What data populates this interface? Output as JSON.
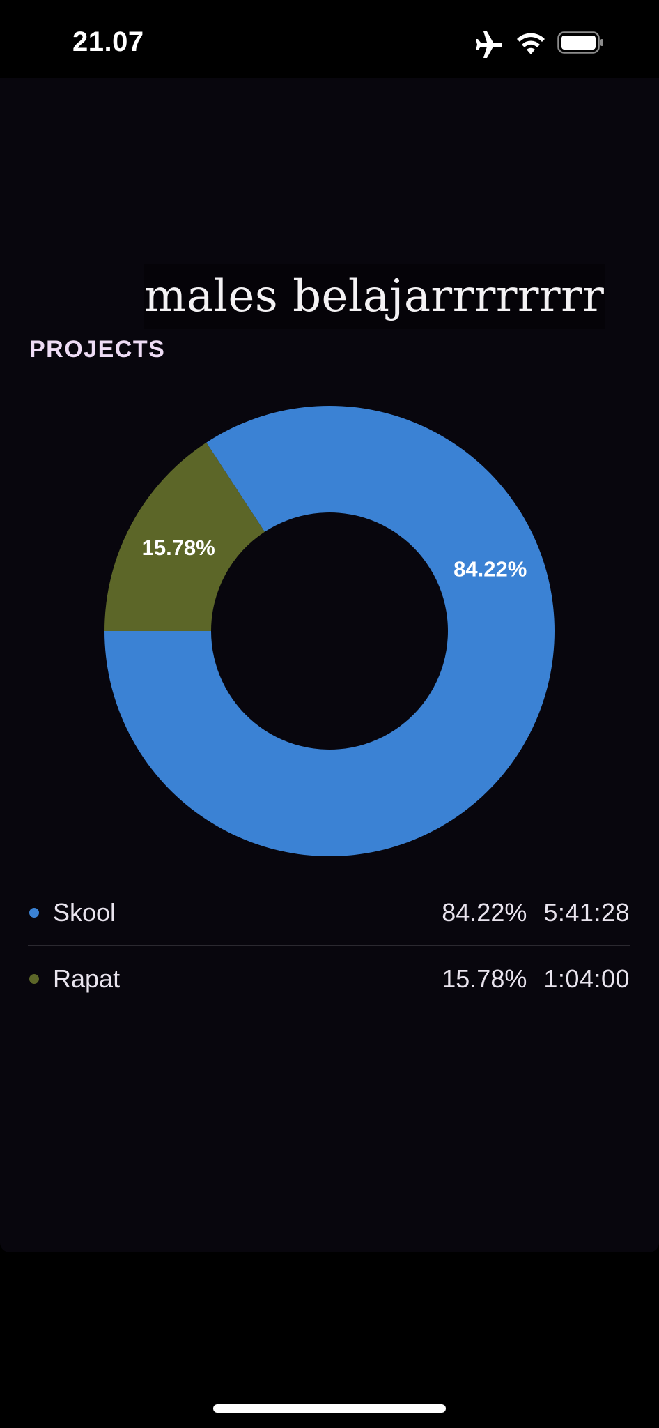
{
  "status_bar": {
    "time": "21.07",
    "icons": [
      "airplane-icon",
      "wifi-icon",
      "battery-icon"
    ]
  },
  "caption": "males belajarrrrrrrr",
  "section_title": "PROJECTS",
  "colors": {
    "skool": "#3b82d4",
    "rapat": "#5c6628",
    "background": "#08060d"
  },
  "chart_data": {
    "type": "pie",
    "donut": true,
    "slices": [
      {
        "label": "Skool",
        "value": 84.22,
        "value_label": "84.22%",
        "color": "#3b82d4"
      },
      {
        "label": "Rapat",
        "value": 15.78,
        "value_label": "15.78%",
        "color": "#5c6628"
      }
    ]
  },
  "legend": [
    {
      "name": "Skool",
      "percent": "84.22%",
      "duration": "5:41:28",
      "color": "#3b82d4"
    },
    {
      "name": "Rapat",
      "percent": "15.78%",
      "duration": "1:04:00",
      "color": "#5c6628"
    }
  ]
}
